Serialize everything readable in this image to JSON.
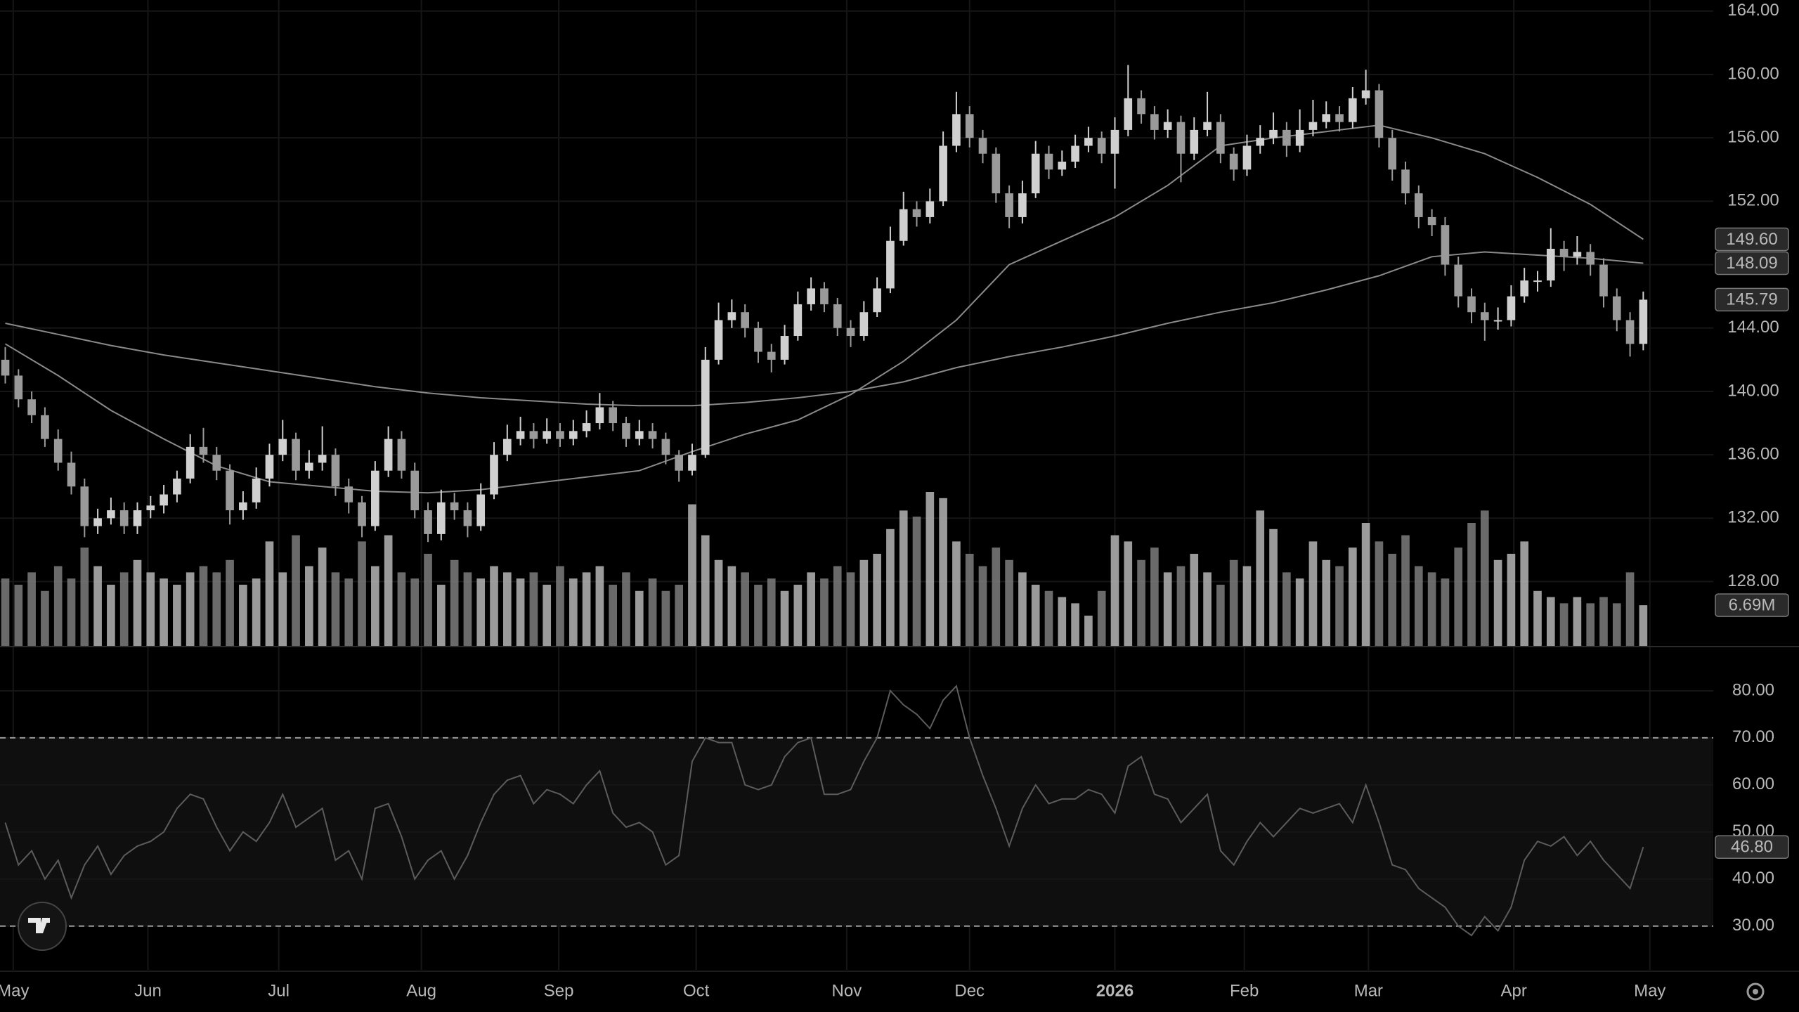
{
  "chart_data": {
    "type": "candlestick",
    "xlim": [
      -0.4,
      129.3
    ],
    "xticks": [
      {
        "value": 0.6,
        "label": "May"
      },
      {
        "value": 10.8,
        "label": "Jun"
      },
      {
        "value": 20.7,
        "label": "Jul"
      },
      {
        "value": 31.5,
        "label": "Aug"
      },
      {
        "value": 41.9,
        "label": "Sep"
      },
      {
        "value": 52.3,
        "label": "Oct"
      },
      {
        "value": 63.7,
        "label": "Nov"
      },
      {
        "value": 73.0,
        "label": "Dec"
      },
      {
        "value": 84.0,
        "label": "2026"
      },
      {
        "value": 93.8,
        "label": "Feb"
      },
      {
        "value": 103.2,
        "label": "Mar"
      },
      {
        "value": 114.2,
        "label": "Apr"
      },
      {
        "value": 124.5,
        "label": "May"
      }
    ],
    "ylim": [
      123.9,
      164.7
    ],
    "yticks": [
      {
        "value": 128,
        "label": "128.00"
      },
      {
        "value": 132,
        "label": "132.00"
      },
      {
        "value": 136,
        "label": "136.00"
      },
      {
        "value": 140,
        "label": "140.00"
      },
      {
        "value": 144,
        "label": "144.00"
      },
      {
        "value": 148,
        "label": "148.00"
      },
      {
        "value": 152,
        "label": "152.00"
      },
      {
        "value": 156,
        "label": "156.00"
      },
      {
        "value": 160,
        "label": "160.00"
      },
      {
        "value": 164,
        "label": "164.00"
      }
    ],
    "grid": true,
    "up_color": "#d0d0d0",
    "down_color": "#9a9a9a",
    "ohlc": [
      [
        142,
        142.8,
        140.5,
        141
      ],
      [
        141,
        141.4,
        139,
        139.5
      ],
      [
        139.5,
        140,
        138,
        138.5
      ],
      [
        138.5,
        139,
        136.5,
        137
      ],
      [
        137,
        137.6,
        135,
        135.5
      ],
      [
        135.5,
        136.2,
        133.5,
        134
      ],
      [
        134,
        134.5,
        130.8,
        131.5
      ],
      [
        131.5,
        132.6,
        131,
        132
      ],
      [
        132,
        133.3,
        131.6,
        132.5
      ],
      [
        132.5,
        133,
        131,
        131.5
      ],
      [
        131.5,
        133,
        131,
        132.5
      ],
      [
        132.5,
        133.4,
        132,
        132.8
      ],
      [
        132.8,
        134.1,
        132.3,
        133.5
      ],
      [
        133.5,
        135,
        133,
        134.5
      ],
      [
        134.5,
        137.3,
        134.2,
        136.5
      ],
      [
        136.5,
        137.7,
        135.5,
        136
      ],
      [
        136,
        136.5,
        134.4,
        135
      ],
      [
        135,
        135.4,
        131.6,
        132.5
      ],
      [
        132.5,
        133.7,
        131.9,
        133
      ],
      [
        133,
        135.2,
        132.6,
        134.5
      ],
      [
        134.5,
        136.7,
        134,
        136
      ],
      [
        136,
        138.2,
        135.6,
        137
      ],
      [
        137,
        137.4,
        134.4,
        135
      ],
      [
        135,
        136.3,
        134.5,
        135.5
      ],
      [
        135.5,
        137.8,
        135,
        136
      ],
      [
        136,
        136.4,
        133.4,
        134
      ],
      [
        134,
        134.5,
        132.3,
        133
      ],
      [
        133,
        133.4,
        130.8,
        131.5
      ],
      [
        131.5,
        135.6,
        131.2,
        135
      ],
      [
        135,
        137.8,
        134.6,
        137
      ],
      [
        137,
        137.5,
        134.5,
        135
      ],
      [
        135,
        135.5,
        132,
        132.5
      ],
      [
        132.5,
        133,
        130.5,
        131
      ],
      [
        131,
        133.8,
        130.6,
        133
      ],
      [
        133,
        133.6,
        131.9,
        132.5
      ],
      [
        132.5,
        133,
        130.8,
        131.5
      ],
      [
        131.5,
        134.2,
        131.2,
        133.5
      ],
      [
        133.5,
        136.8,
        133.2,
        136
      ],
      [
        136,
        137.9,
        135.6,
        137
      ],
      [
        137,
        138.4,
        136.6,
        137.5
      ],
      [
        137.5,
        138,
        136.4,
        137
      ],
      [
        137,
        138.3,
        136.7,
        137.5
      ],
      [
        137.5,
        138,
        136.5,
        137
      ],
      [
        137,
        138.2,
        136.6,
        137.5
      ],
      [
        137.5,
        138.8,
        137.1,
        138
      ],
      [
        138,
        139.9,
        137.6,
        139
      ],
      [
        139,
        139.4,
        137.5,
        138
      ],
      [
        138,
        138.4,
        136.5,
        137
      ],
      [
        137,
        138.2,
        136.6,
        137.5
      ],
      [
        137.5,
        138,
        136.4,
        137
      ],
      [
        137,
        137.4,
        135.4,
        136
      ],
      [
        136,
        136.3,
        134.3,
        135
      ],
      [
        135,
        136.7,
        134.7,
        136
      ],
      [
        136,
        142.8,
        135.8,
        142
      ],
      [
        142,
        145.6,
        141.7,
        144.5
      ],
      [
        144.5,
        145.8,
        144,
        145
      ],
      [
        145,
        145.5,
        143.4,
        144
      ],
      [
        144,
        144.4,
        141.8,
        142.5
      ],
      [
        142.5,
        143,
        141.2,
        142
      ],
      [
        142,
        144.2,
        141.7,
        143.5
      ],
      [
        143.5,
        146.3,
        143.2,
        145.5
      ],
      [
        145.5,
        147.2,
        145.1,
        146.5
      ],
      [
        146.5,
        146.9,
        145,
        145.5
      ],
      [
        145.5,
        145.9,
        143.5,
        144
      ],
      [
        144,
        144.5,
        142.8,
        143.5
      ],
      [
        143.5,
        145.7,
        143.2,
        145
      ],
      [
        145,
        147.2,
        144.7,
        146.5
      ],
      [
        146.5,
        150.4,
        146.2,
        149.5
      ],
      [
        149.5,
        152.6,
        149.2,
        151.5
      ],
      [
        151.5,
        152,
        150.4,
        151
      ],
      [
        151,
        152.8,
        150.6,
        152
      ],
      [
        152,
        156.4,
        151.7,
        155.5
      ],
      [
        155.5,
        158.9,
        155.1,
        157.5
      ],
      [
        157.5,
        158,
        155.4,
        156
      ],
      [
        156,
        156.5,
        154.4,
        155
      ],
      [
        155,
        155.4,
        151.9,
        152.5
      ],
      [
        152.5,
        153,
        150.3,
        151
      ],
      [
        151,
        153.3,
        150.6,
        152.5
      ],
      [
        152.5,
        155.8,
        152.2,
        155
      ],
      [
        155,
        155.5,
        153.4,
        154
      ],
      [
        154,
        155.2,
        153.6,
        154.5
      ],
      [
        154.5,
        156.2,
        154.1,
        155.5
      ],
      [
        155.5,
        156.7,
        155.1,
        156
      ],
      [
        156,
        156.4,
        154.4,
        155
      ],
      [
        155,
        157.3,
        152.8,
        156.5
      ],
      [
        156.5,
        160.6,
        156.1,
        158.5
      ],
      [
        158.5,
        159,
        156.9,
        157.5
      ],
      [
        157.5,
        158,
        155.9,
        156.5
      ],
      [
        156.5,
        157.8,
        156,
        157
      ],
      [
        157,
        157.4,
        153.2,
        155
      ],
      [
        155,
        157.3,
        154.6,
        156.5
      ],
      [
        156.5,
        158.9,
        156.1,
        157
      ],
      [
        157,
        157.5,
        154.4,
        155
      ],
      [
        155,
        155.4,
        153.3,
        154
      ],
      [
        154,
        156.2,
        153.6,
        155.5
      ],
      [
        155.5,
        156.8,
        155,
        156
      ],
      [
        156,
        157.6,
        155.6,
        156.5
      ],
      [
        156.5,
        157,
        154.8,
        155.5
      ],
      [
        155.5,
        157.8,
        155.1,
        156.5
      ],
      [
        156.5,
        158.4,
        156.1,
        157
      ],
      [
        157,
        158.3,
        156.6,
        157.5
      ],
      [
        157.5,
        158,
        156.4,
        157
      ],
      [
        157,
        159.2,
        156.6,
        158.5
      ],
      [
        158.5,
        160.3,
        158.1,
        159
      ],
      [
        159,
        159.4,
        155.4,
        156
      ],
      [
        156,
        156.5,
        153.3,
        154
      ],
      [
        154,
        154.5,
        151.8,
        152.5
      ],
      [
        152.5,
        153,
        150.3,
        151
      ],
      [
        151,
        151.5,
        149.8,
        150.5
      ],
      [
        150.5,
        151,
        147.3,
        148
      ],
      [
        148,
        148.5,
        145.3,
        146
      ],
      [
        146,
        146.5,
        144.3,
        145
      ],
      [
        145,
        145.6,
        143.2,
        144.5
      ],
      [
        144.5,
        145.3,
        143.9,
        144.5
      ],
      [
        144.5,
        146.7,
        144.1,
        146
      ],
      [
        146,
        147.8,
        145.6,
        147
      ],
      [
        147,
        147.6,
        146.3,
        147
      ],
      [
        147,
        150.3,
        146.6,
        149
      ],
      [
        149,
        149.5,
        147.6,
        148.5
      ],
      [
        148.5,
        149.8,
        148,
        148.8
      ],
      [
        148.8,
        149.3,
        147.3,
        148
      ],
      [
        148,
        148.4,
        145.3,
        146
      ],
      [
        146,
        146.5,
        143.8,
        144.5
      ],
      [
        144.5,
        145,
        142.2,
        143
      ],
      [
        143,
        146.3,
        142.6,
        145.79
      ]
    ],
    "ma": [
      {
        "color": "#8a8a8a",
        "x": [
          0,
          4,
          8,
          12,
          16,
          20,
          24,
          28,
          32,
          36,
          40,
          44,
          48,
          52,
          56,
          60,
          64,
          68,
          72,
          76,
          80,
          84,
          88,
          92,
          96,
          100,
          104,
          108,
          112,
          116,
          120,
          124
        ],
        "values": [
          143,
          141,
          138.8,
          137,
          135.3,
          134.3,
          134,
          133.7,
          133.6,
          133.8,
          134.2,
          134.6,
          135,
          136.2,
          137.3,
          138.2,
          139.8,
          141.9,
          144.5,
          148,
          149.5,
          151,
          153,
          155.5,
          156,
          156.4,
          156.8,
          156,
          155,
          153.5,
          151.8,
          149.6
        ]
      },
      {
        "color": "#8a8a8a",
        "x": [
          0,
          4,
          8,
          12,
          16,
          20,
          24,
          28,
          32,
          36,
          40,
          44,
          48,
          52,
          56,
          60,
          64,
          68,
          72,
          76,
          80,
          84,
          88,
          92,
          96,
          100,
          104,
          108,
          112,
          116,
          120,
          124
        ],
        "values": [
          144.3,
          143.6,
          142.9,
          142.3,
          141.8,
          141.3,
          140.8,
          140.3,
          139.9,
          139.6,
          139.4,
          139.2,
          139.1,
          139.1,
          139.3,
          139.6,
          140,
          140.6,
          141.5,
          142.2,
          142.8,
          143.5,
          144.3,
          145,
          145.6,
          146.4,
          147.3,
          148.5,
          148.8,
          148.6,
          148.4,
          148.09
        ]
      }
    ],
    "volume": {
      "vlim": [
        0,
        60
      ],
      "values": [
        11,
        10,
        12,
        9,
        13,
        11,
        16,
        13,
        10,
        12,
        14,
        12,
        11,
        10,
        12,
        13,
        12,
        14,
        10,
        11,
        17,
        12,
        18,
        13,
        16,
        12,
        11,
        17,
        13,
        18,
        12,
        11,
        15,
        10,
        14,
        12,
        11,
        13,
        12,
        11,
        12,
        10,
        13,
        11,
        12,
        13,
        10,
        12,
        9,
        11,
        9,
        10,
        23,
        18,
        14,
        13,
        12,
        10,
        11,
        9,
        10,
        12,
        11,
        13,
        12,
        14,
        15,
        19,
        22,
        21,
        25,
        24,
        17,
        15,
        13,
        16,
        14,
        12,
        10,
        9,
        8,
        7,
        5,
        9,
        18,
        17,
        14,
        16,
        12,
        13,
        15,
        12,
        10,
        14,
        13,
        22,
        19,
        12,
        11,
        17,
        14,
        13,
        16,
        20,
        17,
        15,
        18,
        13,
        12,
        11,
        16,
        20,
        22,
        14,
        15,
        17,
        9,
        8,
        7,
        8,
        7,
        8,
        7,
        12,
        6.69
      ]
    },
    "rsi": {
      "color": "#5c5c5c",
      "ylim": [
        20.7,
        89.4
      ],
      "band": [
        30,
        70
      ],
      "yticks": [
        {
          "value": 30,
          "label": "30.00"
        },
        {
          "value": 40,
          "label": "40.00"
        },
        {
          "value": 50,
          "label": "50.00"
        },
        {
          "value": 60,
          "label": "60.00"
        },
        {
          "value": 70,
          "label": "70.00"
        },
        {
          "value": 80,
          "label": "80.00"
        }
      ],
      "values": [
        52,
        43,
        46,
        40,
        44,
        36,
        43,
        47,
        41,
        45,
        47,
        48,
        50,
        55,
        58,
        57,
        51,
        46,
        50,
        48,
        52,
        58,
        51,
        53,
        55,
        44,
        46,
        40,
        55,
        56,
        49,
        40,
        44,
        46,
        40,
        45,
        52,
        58,
        61,
        62,
        56,
        59,
        58,
        56,
        60,
        63,
        54,
        51,
        52,
        50,
        43,
        45,
        65,
        70,
        69,
        69,
        60,
        59,
        60,
        66,
        69,
        70,
        58,
        58,
        59,
        65,
        70,
        80,
        77,
        75,
        72,
        78,
        81,
        70,
        62,
        55,
        47,
        55,
        60,
        56,
        57,
        57,
        59,
        58,
        54,
        64,
        66,
        58,
        57,
        52,
        55,
        58,
        46,
        43,
        48,
        52,
        49,
        52,
        55,
        54,
        55,
        56,
        52,
        60,
        52,
        43,
        42,
        38,
        36,
        34,
        30,
        28,
        32,
        29,
        34,
        44,
        48,
        47,
        49,
        45,
        48,
        44,
        41,
        38,
        46.8
      ]
    },
    "badges": [
      {
        "value": 149.6,
        "label": "149.60",
        "pane": "price"
      },
      {
        "value": 148.09,
        "label": "148.09",
        "pane": "price"
      },
      {
        "value": 145.79,
        "label": "145.79",
        "pane": "price"
      },
      {
        "value": 6.69,
        "label": "6.69M",
        "pane": "volume"
      },
      {
        "value": 46.8,
        "label": "46.80",
        "pane": "rsi"
      }
    ]
  }
}
